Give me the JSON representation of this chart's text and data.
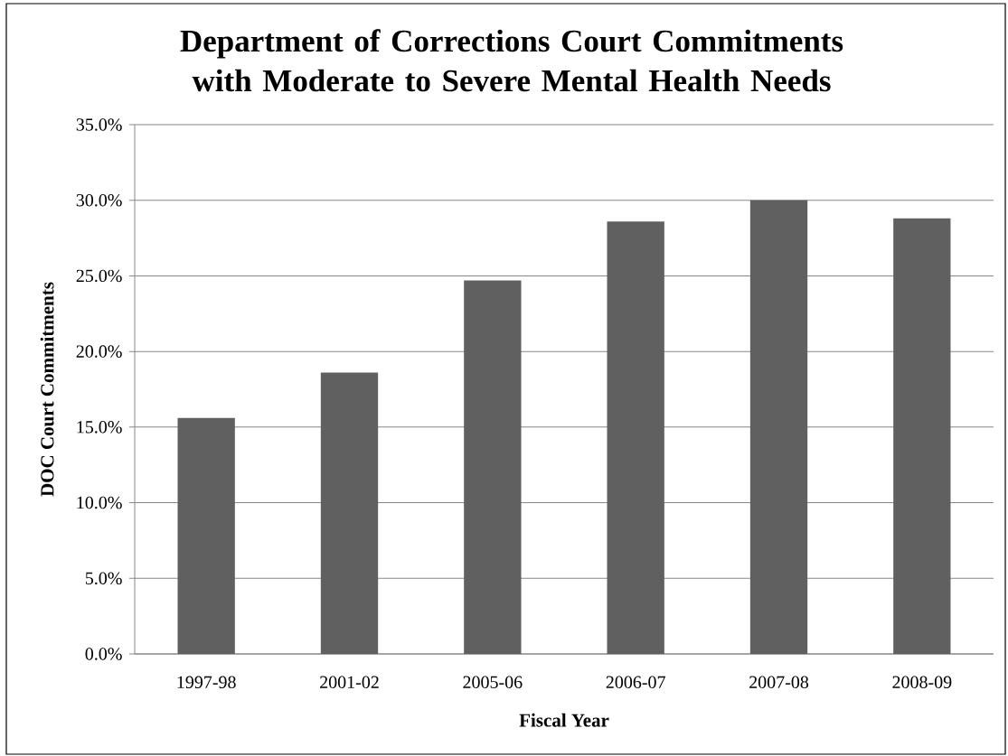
{
  "chart_data": {
    "type": "bar",
    "title": "Department of Corrections Court Commitments with Moderate to Severe Mental Health Needs",
    "xlabel": "Fiscal Year",
    "ylabel": "DOC Court Commitments",
    "categories": [
      "1997-98",
      "2001-02",
      "2005-06",
      "2006-07",
      "2007-08",
      "2008-09"
    ],
    "values": [
      15.6,
      18.6,
      24.7,
      28.6,
      30.0,
      28.8
    ],
    "color": "#606060",
    "ylim": [
      0,
      35
    ],
    "yticks": [
      {
        "value": 0,
        "label": "0.0%"
      },
      {
        "value": 5,
        "label": "5.0%"
      },
      {
        "value": 10,
        "label": "10.0%"
      },
      {
        "value": 15,
        "label": "15.0%"
      },
      {
        "value": 20,
        "label": "20.0%"
      },
      {
        "value": 25,
        "label": "25.0%"
      },
      {
        "value": 30,
        "label": "30.0%"
      },
      {
        "value": 35,
        "label": "35.0%"
      }
    ],
    "grid": "y"
  }
}
